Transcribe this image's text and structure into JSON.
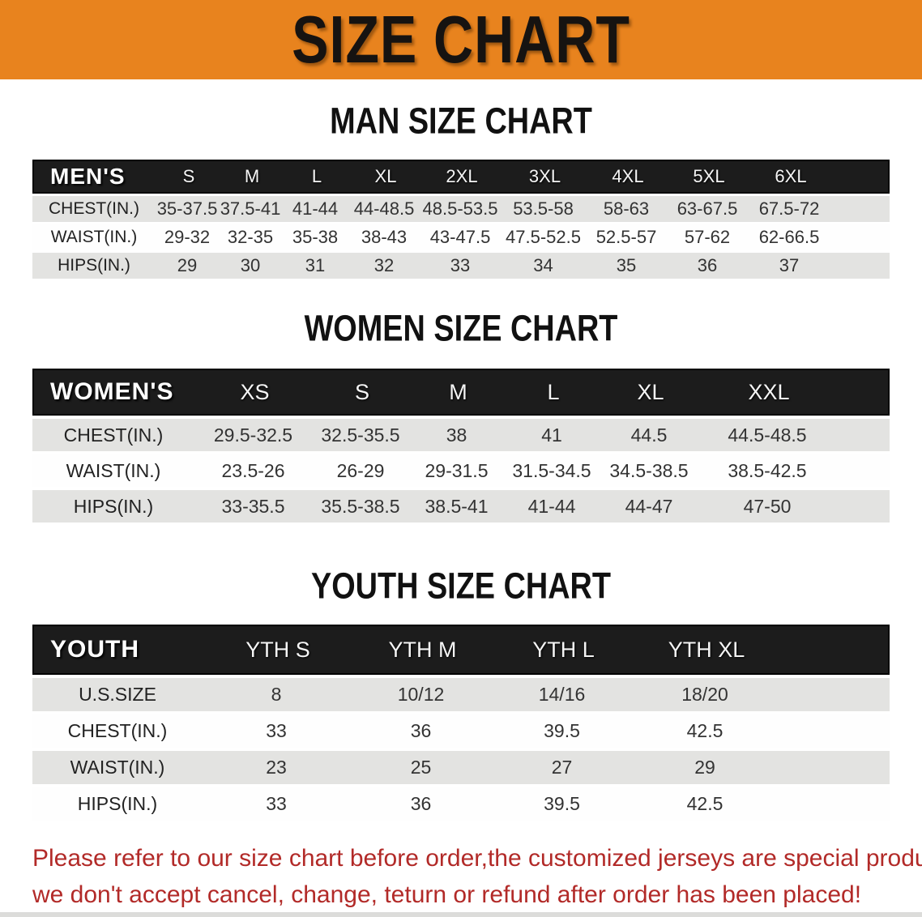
{
  "banner": {
    "title": "SIZE CHART"
  },
  "colors": {
    "accent_orange": "#e8831e",
    "header_bar_black": "#1c1c1c",
    "row_stripe_gray": "#e3e3e1",
    "notice_red": "#b22a28"
  },
  "sections": [
    {
      "heading": "MAN SIZE CHART",
      "table": {
        "label": "MEN'S",
        "columns": [
          "S",
          "M",
          "L",
          "XL",
          "2XL",
          "3XL",
          "4XL",
          "5XL",
          "6XL"
        ],
        "rows": [
          {
            "label": "CHEST(IN.)",
            "values": [
              "35-37.5",
              "37.5-41",
              "41-44",
              "44-48.5",
              "48.5-53.5",
              "53.5-58",
              "58-63",
              "63-67.5",
              "67.5-72"
            ]
          },
          {
            "label": "WAIST(IN.)",
            "values": [
              "29-32",
              "32-35",
              "35-38",
              "38-43",
              "43-47.5",
              "47.5-52.5",
              "52.5-57",
              "57-62",
              "62-66.5"
            ]
          },
          {
            "label": "HIPS(IN.)",
            "values": [
              "29",
              "30",
              "31",
              "32",
              "33",
              "34",
              "35",
              "36",
              "37"
            ]
          }
        ]
      }
    },
    {
      "heading": "WOMEN SIZE CHART",
      "table": {
        "label": "WOMEN'S",
        "columns": [
          "XS",
          "S",
          "M",
          "L",
          "XL",
          "XXL"
        ],
        "rows": [
          {
            "label": "CHEST(IN.)",
            "values": [
              "29.5-32.5",
              "32.5-35.5",
              "38",
              "41",
              "44.5",
              "44.5-48.5"
            ]
          },
          {
            "label": "WAIST(IN.)",
            "values": [
              "23.5-26",
              "26-29",
              "29-31.5",
              "31.5-34.5",
              "34.5-38.5",
              "38.5-42.5"
            ]
          },
          {
            "label": "HIPS(IN.)",
            "values": [
              "33-35.5",
              "35.5-38.5",
              "38.5-41",
              "41-44",
              "44-47",
              "47-50"
            ]
          }
        ]
      }
    },
    {
      "heading": "YOUTH SIZE CHART",
      "table": {
        "label": "YOUTH",
        "columns": [
          "YTH S",
          "YTH M",
          "YTH L",
          "YTH XL"
        ],
        "rows": [
          {
            "label": "U.S.SIZE",
            "values": [
              "8",
              "10/12",
              "14/16",
              "18/20"
            ]
          },
          {
            "label": "CHEST(IN.)",
            "values": [
              "33",
              "36",
              "39.5",
              "42.5"
            ]
          },
          {
            "label": "WAIST(IN.)",
            "values": [
              "23",
              "25",
              "27",
              "29"
            ]
          },
          {
            "label": "HIPS(IN.)",
            "values": [
              "33",
              "36",
              "39.5",
              "42.5"
            ]
          }
        ]
      }
    }
  ],
  "footer": {
    "line1": "Please refer to our size chart before order,the customized jerseys are special products,",
    "line2": "we don't accept cancel, change, teturn or refund after order has been placed!"
  }
}
